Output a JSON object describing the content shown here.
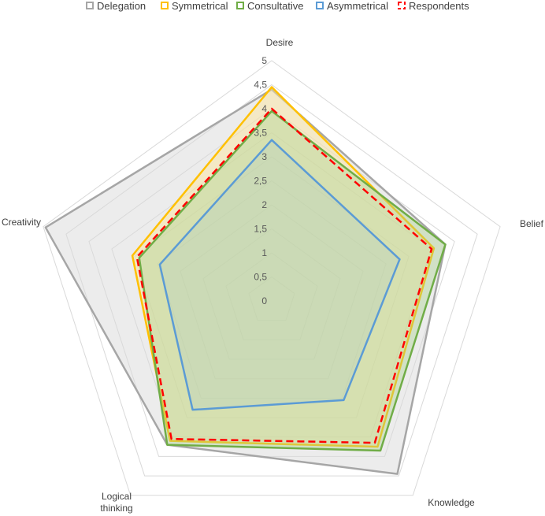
{
  "chart_data": {
    "type": "radar",
    "axes": [
      "Desire",
      "Belief",
      "Knowledge",
      "Logical thinking",
      "Creativity"
    ],
    "axis_label_lines": [
      [
        "Desire"
      ],
      [
        "Belief"
      ],
      [
        "Knowledge"
      ],
      [
        "Logical",
        "thinking"
      ],
      [
        "Creativity"
      ]
    ],
    "ticks": [
      "0",
      "0,5",
      "1",
      "1,5",
      "2",
      "2,5",
      "3",
      "3,5",
      "4",
      "4,5",
      "5"
    ],
    "rlim": [
      0,
      5
    ],
    "grid": true,
    "legend_position": "top",
    "series": [
      {
        "name": "Delegation",
        "values": [
          4.4,
          3.8,
          4.45,
          3.7,
          4.95
        ],
        "stroke": "#a6a6a6",
        "fill": "#d9d9d9",
        "fill_opacity": 0.5,
        "dashed": false
      },
      {
        "name": "Symmetrical",
        "values": [
          4.45,
          3.55,
          3.75,
          3.6,
          3.05
        ],
        "stroke": "#ffc000",
        "fill": "#ffe699",
        "fill_opacity": 0.45,
        "dashed": false
      },
      {
        "name": "Consultative",
        "values": [
          3.95,
          3.8,
          3.85,
          3.7,
          2.9
        ],
        "stroke": "#70ad47",
        "fill": "#a9d18e",
        "fill_opacity": 0.4,
        "dashed": false
      },
      {
        "name": "Asymmetrical",
        "values": [
          3.35,
          2.8,
          2.55,
          2.8,
          2.45
        ],
        "stroke": "#5b9bd5",
        "fill": "#8fbce0",
        "fill_opacity": 0.15,
        "dashed": false
      },
      {
        "name": "Respondents",
        "values": [
          4.0,
          3.5,
          3.65,
          3.55,
          2.95
        ],
        "stroke": "#ff0000",
        "fill": "none",
        "fill_opacity": 0,
        "dashed": true
      }
    ]
  }
}
